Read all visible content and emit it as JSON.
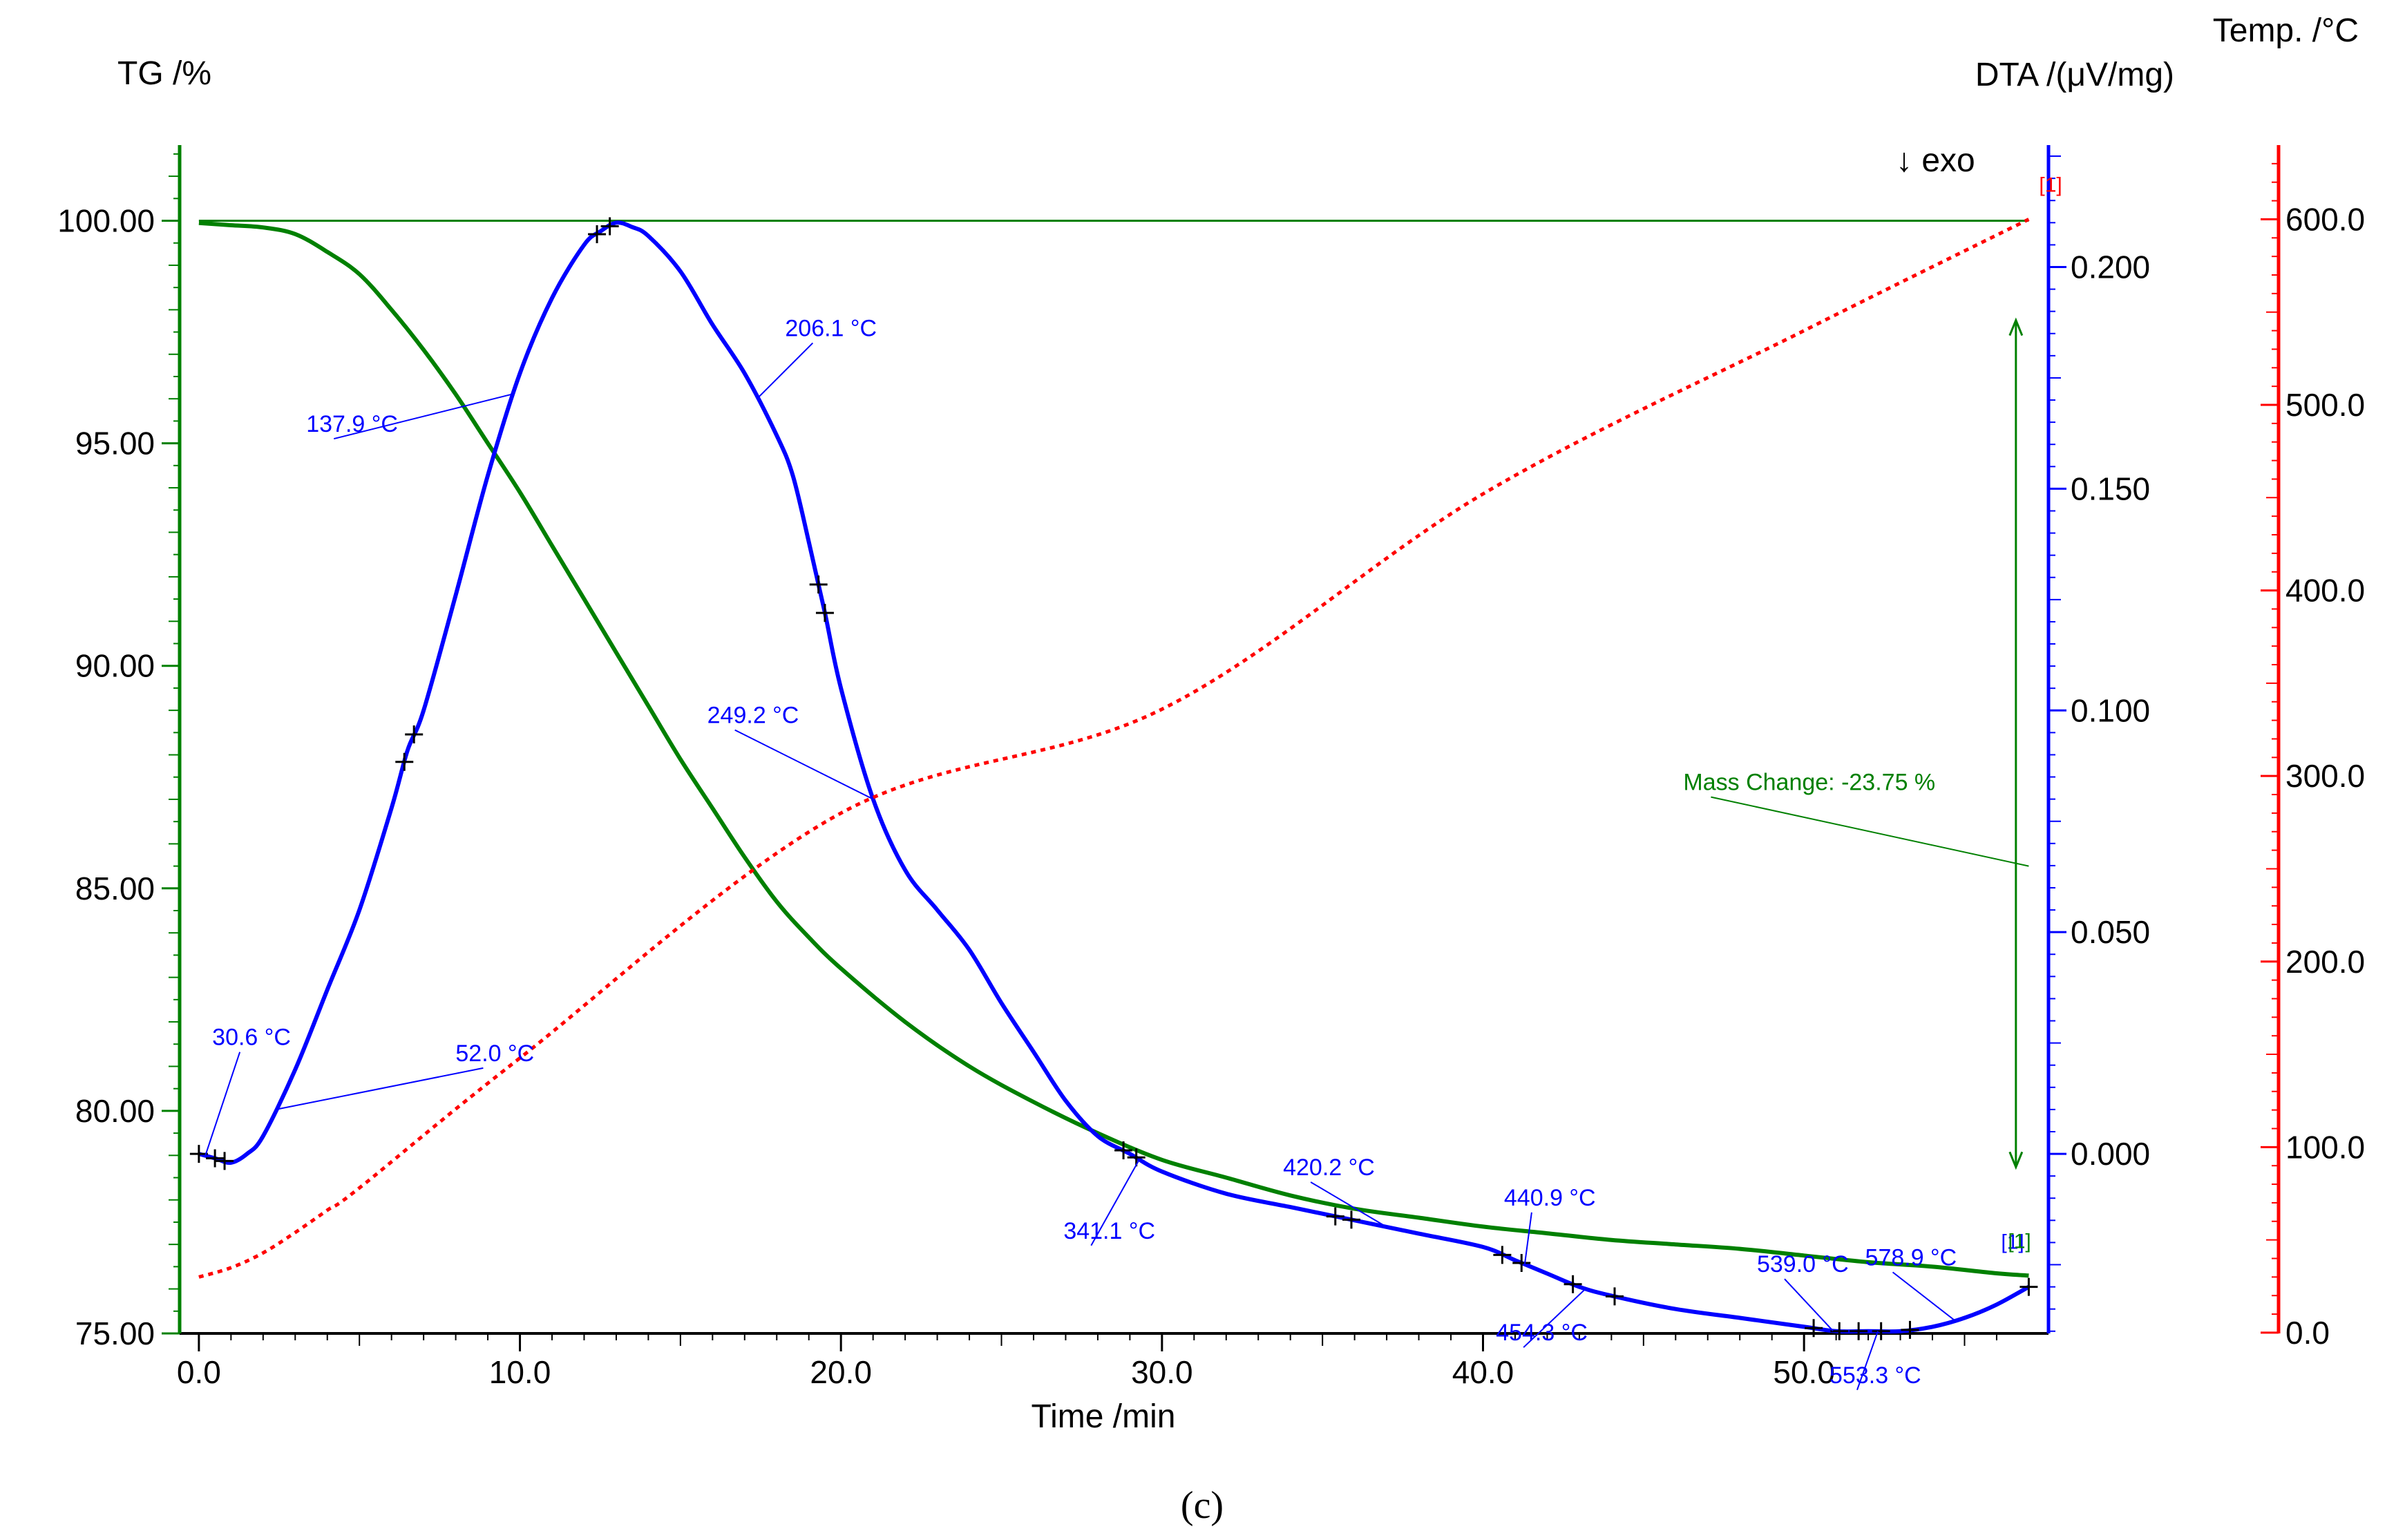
{
  "chart_data": {
    "type": "line",
    "title": "",
    "caption": "(c)",
    "exo_label": "↓ exo",
    "x_axis": {
      "label": "Time /min",
      "range": [
        -0.6,
        57.4
      ],
      "ticks": [
        0,
        10,
        20,
        30,
        40,
        50
      ],
      "tick_labels": [
        "0.0",
        "10.0",
        "20.0",
        "30.0",
        "40.0",
        "50.0"
      ]
    },
    "y_axes": {
      "tg": {
        "label": "TG /%",
        "color": "#008000",
        "range": [
          75.0,
          101.7
        ],
        "ticks": [
          75,
          80,
          85,
          90,
          95,
          100
        ],
        "tick_labels": [
          "75.00",
          "80.00",
          "85.00",
          "90.00",
          "95.00",
          "100.00"
        ]
      },
      "dta": {
        "label": "DTA /(μV/mg)",
        "color": "#0000ff",
        "range": [
          -0.0405,
          0.2275
        ],
        "ticks": [
          0.0,
          0.05,
          0.1,
          0.15,
          0.2
        ],
        "tick_labels": [
          "0.000",
          "0.050",
          "0.100",
          "0.150",
          "0.200"
        ]
      },
      "temp": {
        "label": "Temp. /°C",
        "color": "#ff0000",
        "range": [
          -0.4,
          640.0
        ],
        "ticks": [
          0,
          100,
          200,
          300,
          400,
          500,
          600
        ],
        "tick_labels": [
          "0.0",
          "100.0",
          "200.0",
          "300.0",
          "400.0",
          "500.0",
          "600.0"
        ]
      }
    },
    "series": [
      {
        "name": "TG",
        "axis": "tg",
        "color": "#008000",
        "x": [
          0.0,
          1.0,
          2.0,
          3.0,
          4.0,
          5.0,
          6.0,
          7.0,
          8.0,
          9.0,
          10.0,
          11.0,
          12.0,
          13.0,
          14.0,
          15.0,
          16.0,
          17.0,
          18.0,
          19.0,
          20.0,
          22.0,
          24.0,
          26.0,
          28.0,
          30.0,
          32.0,
          34.0,
          36.0,
          38.0,
          40.0,
          42.0,
          44.0,
          46.0,
          48.0,
          50.0,
          52.0,
          54.0,
          56.0,
          57.0
        ],
        "values": [
          99.95,
          99.9,
          99.85,
          99.7,
          99.3,
          98.8,
          98.0,
          97.1,
          96.1,
          95.0,
          93.9,
          92.7,
          91.5,
          90.3,
          89.1,
          87.9,
          86.8,
          85.7,
          84.7,
          83.9,
          83.2,
          82.0,
          81.0,
          80.2,
          79.5,
          78.9,
          78.5,
          78.1,
          77.8,
          77.6,
          77.4,
          77.25,
          77.1,
          77.0,
          76.9,
          76.75,
          76.6,
          76.5,
          76.35,
          76.3
        ]
      },
      {
        "name": "DTA",
        "axis": "dta",
        "color": "#0000ff",
        "x": [
          0.0,
          0.5,
          1.0,
          1.5,
          2.0,
          3.0,
          4.0,
          5.0,
          6.0,
          6.5,
          7.0,
          8.0,
          9.0,
          10.0,
          11.0,
          12.0,
          12.5,
          13.0,
          13.5,
          14.0,
          15.0,
          16.0,
          17.0,
          18.0,
          18.5,
          19.0,
          19.5,
          20.0,
          21.0,
          22.0,
          23.0,
          24.0,
          25.0,
          26.0,
          27.0,
          28.0,
          29.0,
          30.0,
          32.0,
          34.0,
          36.0,
          38.0,
          40.0,
          41.0,
          42.0,
          43.0,
          44.0,
          46.0,
          48.0,
          50.0,
          51.0,
          52.0,
          53.0,
          54.0,
          55.0,
          56.0,
          57.0
        ],
        "values": [
          0.0,
          -0.001,
          -0.002,
          0.0,
          0.004,
          0.019,
          0.037,
          0.055,
          0.078,
          0.091,
          0.1,
          0.126,
          0.153,
          0.176,
          0.193,
          0.205,
          0.208,
          0.21,
          0.209,
          0.207,
          0.199,
          0.187,
          0.176,
          0.162,
          0.153,
          0.138,
          0.122,
          0.105,
          0.08,
          0.064,
          0.055,
          0.046,
          0.034,
          0.023,
          0.012,
          0.004,
          0.0,
          -0.004,
          -0.009,
          -0.012,
          -0.015,
          -0.018,
          -0.021,
          -0.024,
          -0.027,
          -0.03,
          -0.032,
          -0.035,
          -0.037,
          -0.039,
          -0.04,
          -0.04,
          -0.04,
          -0.039,
          -0.037,
          -0.034,
          -0.03
        ]
      },
      {
        "name": "Temp",
        "axis": "temp",
        "color": "#ff0000",
        "x": [
          0.0,
          1.0,
          2.0,
          3.0,
          4.0,
          5.0,
          10.0,
          20.0,
          30.0,
          40.0,
          50.0,
          57.0
        ],
        "values": [
          30,
          35,
          43,
          54,
          66,
          78,
          148,
          280,
          336,
          452,
          540,
          600
        ]
      }
    ],
    "annotations": [
      {
        "text": "30.6 °C",
        "x": 0.2,
        "series": "DTA",
        "color": "#0000ff"
      },
      {
        "text": "52.0 °C",
        "x": 2.4,
        "series": "DTA",
        "color": "#0000ff"
      },
      {
        "text": "137.9 °C",
        "x": 9.8,
        "series": "DTA",
        "color": "#0000ff"
      },
      {
        "text": "206.1 °C",
        "x": 17.4,
        "series": "DTA",
        "color": "#0000ff"
      },
      {
        "text": "249.2 °C",
        "x": 21.0,
        "series": "DTA",
        "color": "#0000ff"
      },
      {
        "text": "341.1 °C",
        "x": 29.3,
        "series": "DTA",
        "color": "#0000ff"
      },
      {
        "text": "420.2 °C",
        "x": 37.0,
        "series": "DTA",
        "color": "#0000ff"
      },
      {
        "text": "440.9 °C",
        "x": 41.3,
        "series": "DTA",
        "color": "#0000ff"
      },
      {
        "text": "454.3 °C",
        "x": 43.2,
        "series": "DTA",
        "color": "#0000ff"
      },
      {
        "text": "539.0 °C",
        "x": 50.9,
        "series": "DTA",
        "color": "#0000ff"
      },
      {
        "text": "553.3 °C",
        "x": 52.3,
        "series": "DTA",
        "color": "#0000ff"
      },
      {
        "text": "578.9 °C",
        "x": 54.7,
        "series": "DTA",
        "color": "#0000ff"
      },
      {
        "text": "Mass Change: -23.75 %",
        "x": 57.0,
        "series": "TG",
        "color": "#008000"
      }
    ],
    "markers": [
      {
        "text": "[1]",
        "series": "Temp",
        "color": "#ff0000"
      },
      {
        "text": "[1]",
        "series": "DTA",
        "color": "#0000ff"
      },
      {
        "text": "[1]",
        "series": "TG",
        "color": "#008000"
      }
    ],
    "cross_markers_x": [
      0.0,
      0.5,
      0.8,
      6.4,
      6.7,
      12.4,
      12.8,
      19.3,
      19.5,
      28.8,
      29.2,
      35.4,
      35.9,
      40.6,
      41.2,
      42.8,
      44.1,
      50.3,
      51.1,
      51.7,
      52.4,
      53.3,
      57.0
    ]
  }
}
